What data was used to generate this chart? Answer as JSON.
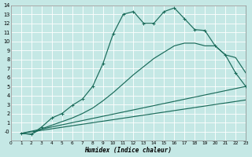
{
  "xlabel": "Humidex (Indice chaleur)",
  "bg_color": "#c5e8e5",
  "grid_color": "#ffffff",
  "line_color": "#1a6b5a",
  "xlim": [
    0,
    23
  ],
  "ylim": [
    -1,
    14
  ],
  "xticks": [
    0,
    1,
    2,
    3,
    4,
    5,
    6,
    7,
    8,
    9,
    10,
    11,
    12,
    13,
    14,
    15,
    16,
    17,
    18,
    19,
    20,
    21,
    22,
    23
  ],
  "yticks": [
    0,
    1,
    2,
    3,
    4,
    5,
    6,
    7,
    8,
    9,
    10,
    11,
    12,
    13,
    14
  ],
  "ytick_labels": [
    "-0",
    "1",
    "2",
    "3",
    "4",
    "5",
    "6",
    "7",
    "8",
    "9",
    "10",
    "11",
    "12",
    "13",
    "14"
  ],
  "line1_x": [
    1,
    2,
    3,
    4,
    5,
    6,
    7,
    8,
    9,
    10,
    11,
    12,
    13,
    14,
    15,
    16,
    17,
    18,
    19,
    20,
    21,
    22,
    23
  ],
  "line1_y": [
    -0.2,
    -0.3,
    0.5,
    1.5,
    2.0,
    2.9,
    3.6,
    5.0,
    7.5,
    10.8,
    13.0,
    13.3,
    12.0,
    12.0,
    13.3,
    13.7,
    12.5,
    11.3,
    11.2,
    9.5,
    8.5,
    6.5,
    5.0
  ],
  "line2_x": [
    1,
    2,
    3,
    4,
    5,
    6,
    7,
    8,
    9,
    10,
    11,
    12,
    13,
    14,
    15,
    16,
    17,
    18,
    19,
    20,
    21,
    22,
    23
  ],
  "line2_y": [
    -0.2,
    -0.3,
    0.3,
    0.7,
    1.1,
    1.5,
    2.0,
    2.6,
    3.4,
    4.3,
    5.3,
    6.3,
    7.2,
    8.1,
    8.8,
    9.5,
    9.8,
    9.8,
    9.5,
    9.5,
    8.5,
    8.2,
    6.5
  ],
  "line3_x": [
    1,
    23
  ],
  "line3_y": [
    -0.2,
    5.0
  ],
  "line4_x": [
    1,
    23
  ],
  "line4_y": [
    -0.2,
    3.5
  ]
}
